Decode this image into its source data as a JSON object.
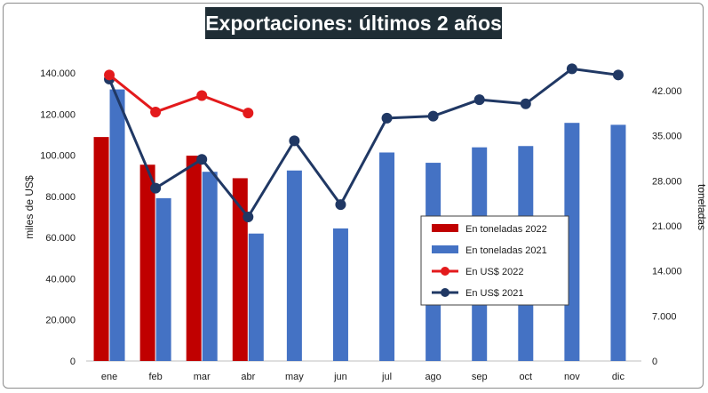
{
  "chart_data": {
    "type": "bar",
    "title": "Exportaciones: últimos 2 años",
    "categories": [
      "ene",
      "feb",
      "mar",
      "abr",
      "may",
      "jun",
      "jul",
      "ago",
      "sep",
      "oct",
      "nov",
      "dic"
    ],
    "ylabel": "miles de US$",
    "y2label": "toneladas",
    "ylim": [
      0,
      140000
    ],
    "y2lim": [
      0,
      42000
    ],
    "yticks": [
      "0",
      "20.000",
      "40.000",
      "60.000",
      "80.000",
      "100.000",
      "120.000",
      "140.000"
    ],
    "y2ticks": [
      "0",
      "7.000",
      "14.000",
      "21.000",
      "28.000",
      "35.000",
      "42.000"
    ],
    "series": [
      {
        "name": "En toneladas 2022",
        "kind": "bar",
        "axis": "y2",
        "color": "#c00000",
        "values": [
          34800,
          30500,
          31900,
          28400,
          null,
          null,
          null,
          null,
          null,
          null,
          null,
          null
        ]
      },
      {
        "name": "En toneladas 2021",
        "kind": "bar",
        "axis": "y2",
        "color": "#4472c4",
        "values": [
          42200,
          25300,
          29400,
          19800,
          29600,
          20600,
          32400,
          30800,
          33200,
          33400,
          37000,
          36700
        ]
      },
      {
        "name": "En US$ 2022",
        "kind": "line",
        "axis": "y",
        "color": "#e31a1c",
        "values": [
          139000,
          121000,
          129000,
          120500,
          null,
          null,
          null,
          null,
          null,
          null,
          null,
          null
        ]
      },
      {
        "name": "En US$ 2021",
        "kind": "line",
        "axis": "y",
        "color": "#203864",
        "values": [
          137000,
          84000,
          98000,
          70000,
          107000,
          76000,
          118000,
          119000,
          127000,
          125000,
          142000,
          139000
        ]
      }
    ],
    "legend_position": "lower-center-right",
    "grid": false
  }
}
